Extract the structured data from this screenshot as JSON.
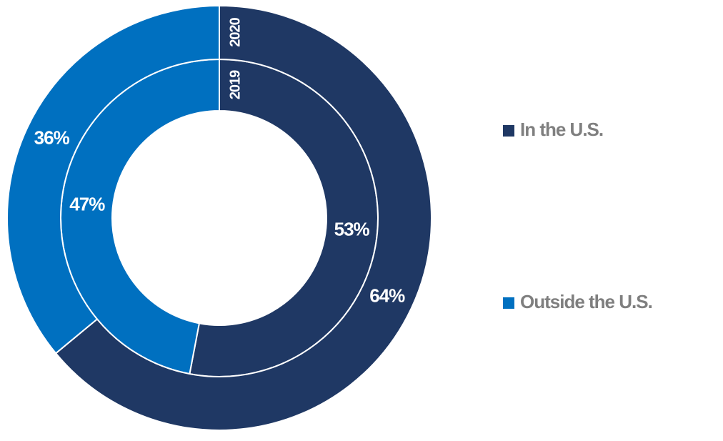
{
  "chart_data": {
    "type": "donut",
    "categories": [
      "In the U.S.",
      "Outside the U.S."
    ],
    "colors": [
      "#1f3864",
      "#0070c0"
    ],
    "series": [
      {
        "name": "2019",
        "values": [
          53,
          47
        ],
        "value_labels": [
          "53%",
          "47%"
        ]
      },
      {
        "name": "2020",
        "values": [
          64,
          36
        ],
        "value_labels": [
          "64%",
          "36%"
        ]
      }
    ],
    "legend": "right"
  }
}
